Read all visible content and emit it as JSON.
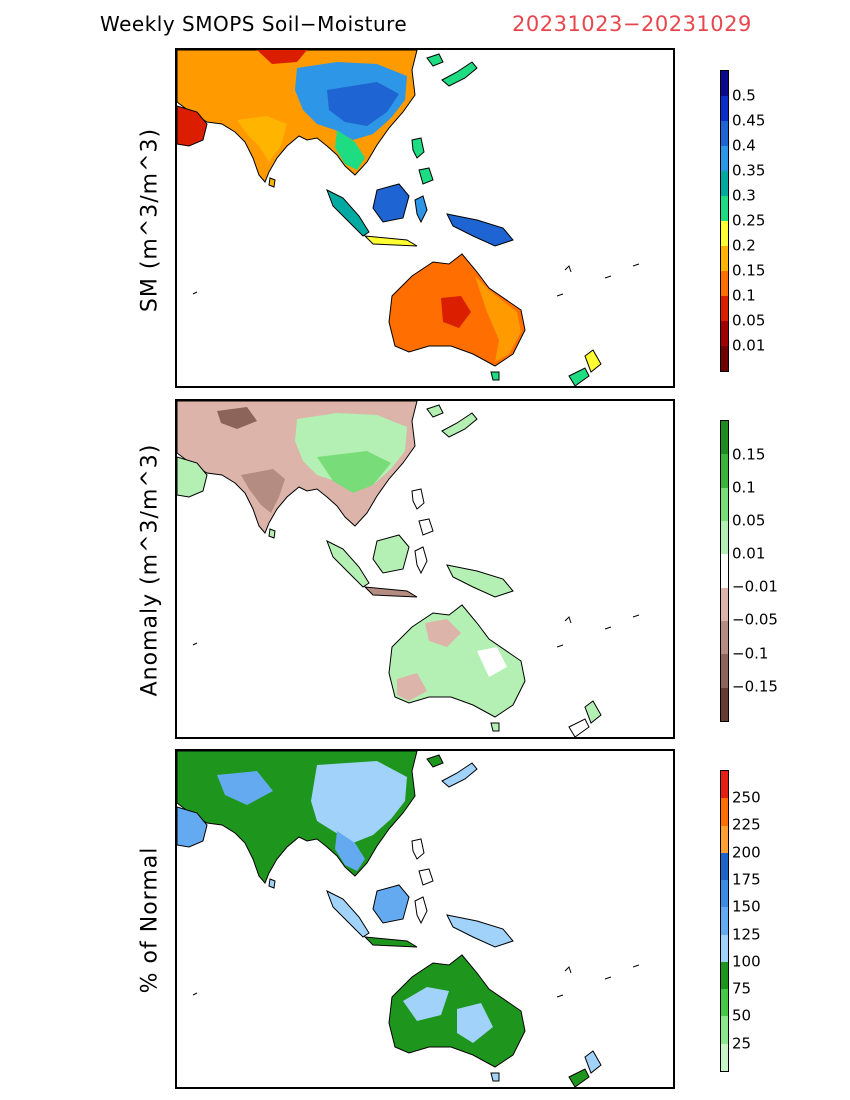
{
  "header": {
    "title": "Weekly SMOPS Soil−Moisture",
    "date_range": "20231023−20231029",
    "date_color": "#e8464e"
  },
  "panels": [
    {
      "ylabel": "SM (m^3/m^3)",
      "legend_labels": [
        "0.5",
        "0.45",
        "0.4",
        "0.35",
        "0.3",
        "0.25",
        "0.2",
        "0.15",
        "0.1",
        "0.05",
        "0.01"
      ],
      "colors": [
        "#0a0a8c",
        "#0a2ec8",
        "#1e64d2",
        "#2d96e6",
        "#00aaa0",
        "#1edc82",
        "#ffff32",
        "#ffb400",
        "#ff6e00",
        "#dc1e00",
        "#a00000",
        "#6e0000"
      ]
    },
    {
      "ylabel": "Anomaly (m^3/m^3)",
      "legend_labels": [
        "0.15",
        "0.1",
        "0.05",
        "0.01",
        "−0.01",
        "−0.05",
        "−0.1",
        "−0.15"
      ],
      "colors": [
        "#1e8c1e",
        "#3cb43c",
        "#78dc78",
        "#b4f0b4",
        "#ffffff",
        "#dcb4aa",
        "#b48c82",
        "#8c645a",
        "#643c32"
      ]
    },
    {
      "ylabel": "% of Normal",
      "legend_labels": [
        "250",
        "225",
        "200",
        "175",
        "150",
        "125",
        "100",
        "75",
        "50",
        "25"
      ],
      "colors": [
        "#e61e14",
        "#ff6e00",
        "#ffa032",
        "#1e64c8",
        "#3c8ce6",
        "#64aaf0",
        "#a0d2fa",
        "#1e961e",
        "#46c846",
        "#8ce68c",
        "#c8f5c8"
      ]
    }
  ]
}
